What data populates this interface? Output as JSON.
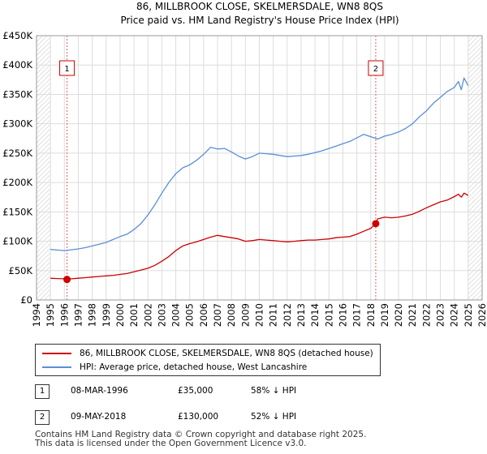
{
  "chart_data": {
    "type": "line",
    "title": "86, MILLBROOK CLOSE, SKELMERSDALE, WN8 8QS",
    "subtitle": "Price paid vs. HM Land Registry's House Price Index (HPI)",
    "xlim": [
      1994,
      2026
    ],
    "ylim": [
      0,
      450000
    ],
    "x_ticks": [
      "1994",
      "1995",
      "1996",
      "1997",
      "1998",
      "1999",
      "2000",
      "2001",
      "2002",
      "2003",
      "2004",
      "2005",
      "2006",
      "2007",
      "2008",
      "2009",
      "2010",
      "2011",
      "2012",
      "2013",
      "2014",
      "2015",
      "2016",
      "2017",
      "2018",
      "2019",
      "2020",
      "2021",
      "2022",
      "2023",
      "2024",
      "2025",
      "2026"
    ],
    "y_ticks": [
      {
        "value": 0,
        "label": "£0"
      },
      {
        "value": 50000,
        "label": "£50K"
      },
      {
        "value": 100000,
        "label": "£100K"
      },
      {
        "value": 150000,
        "label": "£150K"
      },
      {
        "value": 200000,
        "label": "£200K"
      },
      {
        "value": 250000,
        "label": "£250K"
      },
      {
        "value": 300000,
        "label": "£300K"
      },
      {
        "value": 350000,
        "label": "£350K"
      },
      {
        "value": 400000,
        "label": "£400K"
      },
      {
        "value": 450000,
        "label": "£450K"
      }
    ],
    "grid": true,
    "hatched_ranges": [
      [
        1994,
        1995
      ],
      [
        2025,
        2026
      ]
    ],
    "series": [
      {
        "name": "86, MILLBROOK CLOSE, SKELMERSDALE, WN8 8QS (detached house)",
        "color": "#cc0000",
        "x": [
          1995.0,
          1995.5,
          1996.0,
          1996.19,
          1996.5,
          1997.0,
          1997.5,
          1998.0,
          1998.5,
          1999.0,
          1999.5,
          2000.0,
          2000.5,
          2001.0,
          2001.5,
          2002.0,
          2002.5,
          2003.0,
          2003.5,
          2004.0,
          2004.5,
          2005.0,
          2005.5,
          2006.0,
          2006.5,
          2007.0,
          2007.5,
          2008.0,
          2008.5,
          2009.0,
          2009.5,
          2010.0,
          2010.5,
          2011.0,
          2011.5,
          2012.0,
          2012.5,
          2013.0,
          2013.5,
          2014.0,
          2014.5,
          2015.0,
          2015.5,
          2016.0,
          2016.5,
          2017.0,
          2017.5,
          2018.0,
          2018.36,
          2018.5,
          2019.0,
          2019.5,
          2020.0,
          2020.5,
          2021.0,
          2021.5,
          2022.0,
          2022.5,
          2023.0,
          2023.5,
          2024.0,
          2024.3,
          2024.5,
          2024.7,
          2025.0
        ],
        "y": [
          37000,
          36500,
          36000,
          35000,
          36000,
          37000,
          38000,
          39000,
          40000,
          41000,
          42000,
          43500,
          45000,
          48000,
          51000,
          54000,
          59000,
          66000,
          74000,
          84000,
          92000,
          96000,
          99000,
          103000,
          107000,
          110000,
          108000,
          106000,
          104000,
          100000,
          101000,
          103000,
          102000,
          101000,
          100000,
          99000,
          100000,
          101000,
          102000,
          102000,
          103000,
          104000,
          106000,
          107000,
          108000,
          112000,
          117000,
          122000,
          130000,
          138000,
          141000,
          140000,
          141000,
          143000,
          146000,
          151000,
          157000,
          162000,
          167000,
          170000,
          176000,
          180000,
          175000,
          182000,
          178000
        ]
      },
      {
        "name": "HPI: Average price, detached house, West Lancashire",
        "color": "#5b8ed6",
        "x": [
          1995.0,
          1995.5,
          1996.0,
          1996.5,
          1997.0,
          1997.5,
          1998.0,
          1998.5,
          1999.0,
          1999.5,
          2000.0,
          2000.5,
          2001.0,
          2001.5,
          2002.0,
          2002.5,
          2003.0,
          2003.5,
          2004.0,
          2004.5,
          2005.0,
          2005.5,
          2006.0,
          2006.5,
          2007.0,
          2007.5,
          2008.0,
          2008.5,
          2009.0,
          2009.5,
          2010.0,
          2010.5,
          2011.0,
          2011.5,
          2012.0,
          2012.5,
          2013.0,
          2013.5,
          2014.0,
          2014.5,
          2015.0,
          2015.5,
          2016.0,
          2016.5,
          2017.0,
          2017.5,
          2018.0,
          2018.5,
          2019.0,
          2019.5,
          2020.0,
          2020.5,
          2021.0,
          2021.5,
          2022.0,
          2022.5,
          2023.0,
          2023.5,
          2024.0,
          2024.3,
          2024.5,
          2024.7,
          2025.0
        ],
        "y": [
          86000,
          85000,
          84000,
          85500,
          87000,
          89000,
          92000,
          95000,
          98000,
          103000,
          108000,
          112000,
          120000,
          130000,
          145000,
          162000,
          182000,
          200000,
          215000,
          225000,
          230000,
          238000,
          248000,
          260000,
          257000,
          258000,
          252000,
          245000,
          240000,
          244000,
          250000,
          249000,
          248000,
          246000,
          244000,
          245000,
          246000,
          248000,
          251000,
          254000,
          258000,
          262000,
          266000,
          270000,
          276000,
          282000,
          278000,
          274000,
          279000,
          282000,
          286000,
          292000,
          300000,
          312000,
          322000,
          335000,
          345000,
          355000,
          362000,
          372000,
          358000,
          378000,
          365000
        ]
      }
    ],
    "sales": [
      {
        "label": "1",
        "x": 1996.19,
        "y": 35000,
        "date": "08-MAR-1996",
        "price": "£35,000",
        "hpi": "58% ↓ HPI"
      },
      {
        "label": "2",
        "x": 2018.36,
        "y": 130000,
        "date": "09-MAY-2018",
        "price": "£130,000",
        "hpi": "52% ↓ HPI"
      }
    ]
  },
  "footer": {
    "line1": "Contains HM Land Registry data © Crown copyright and database right 2025.",
    "line2": "This data is licensed under the Open Government Licence v3.0."
  }
}
